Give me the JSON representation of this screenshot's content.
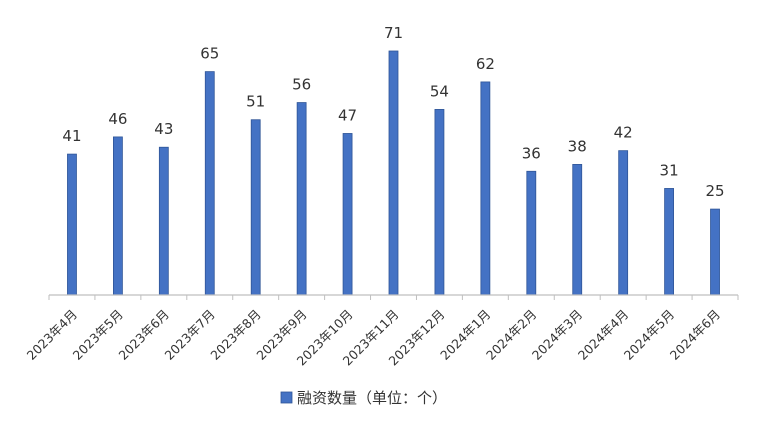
{
  "chart_data": {
    "type": "bar",
    "categories": [
      "2023年4月",
      "2023年5月",
      "2023年6月",
      "2023年7月",
      "2023年8月",
      "2023年9月",
      "2023年10月",
      "2023年11月",
      "2023年12月",
      "2024年1月",
      "2024年2月",
      "2024年3月",
      "2024年4月",
      "2024年5月",
      "2024年6月"
    ],
    "series": [
      {
        "name": "融资数量（单位：个）",
        "values": [
          41,
          46,
          43,
          65,
          51,
          56,
          47,
          71,
          54,
          62,
          36,
          38,
          42,
          31,
          25
        ]
      }
    ],
    "title": "",
    "xlabel": "",
    "ylabel": "",
    "ylim": [
      0,
      71
    ],
    "grid": false,
    "data_labels": true,
    "legend_position": "bottom",
    "colors": {
      "bar_fill": "#4472C4",
      "bar_edge": "#2F5597",
      "axis": "#BFBFBF"
    }
  }
}
